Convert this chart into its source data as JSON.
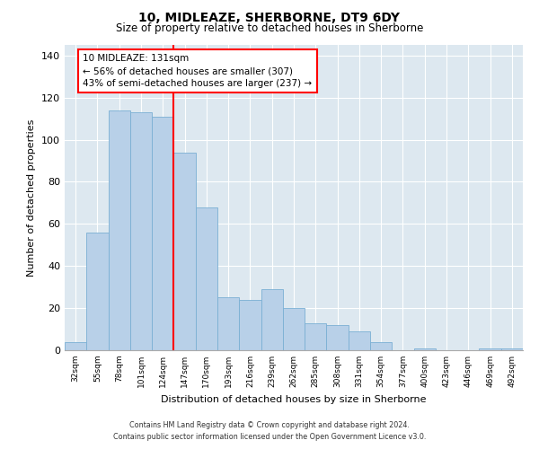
{
  "title": "10, MIDLEAZE, SHERBORNE, DT9 6DY",
  "subtitle": "Size of property relative to detached houses in Sherborne",
  "xlabel": "Distribution of detached houses by size in Sherborne",
  "ylabel": "Number of detached properties",
  "categories": [
    "32sqm",
    "55sqm",
    "78sqm",
    "101sqm",
    "124sqm",
    "147sqm",
    "170sqm",
    "193sqm",
    "216sqm",
    "239sqm",
    "262sqm",
    "285sqm",
    "308sqm",
    "331sqm",
    "354sqm",
    "377sqm",
    "400sqm",
    "423sqm",
    "446sqm",
    "469sqm",
    "492sqm"
  ],
  "values": [
    4,
    56,
    114,
    113,
    111,
    94,
    68,
    25,
    24,
    29,
    20,
    13,
    12,
    9,
    4,
    0,
    1,
    0,
    0,
    1,
    1
  ],
  "bar_color": "#b8d0e8",
  "bar_edge_color": "#7aafd4",
  "background_color": "#dde8f0",
  "grid_color": "#ffffff",
  "redline_label": "10 MIDLEAZE: 131sqm",
  "annotation_line1": "← 56% of detached houses are smaller (307)",
  "annotation_line2": "43% of semi-detached houses are larger (237) →",
  "ylim": [
    0,
    145
  ],
  "yticks": [
    0,
    20,
    40,
    60,
    80,
    100,
    120,
    140
  ],
  "footer1": "Contains HM Land Registry data © Crown copyright and database right 2024.",
  "footer2": "Contains public sector information licensed under the Open Government Licence v3.0."
}
